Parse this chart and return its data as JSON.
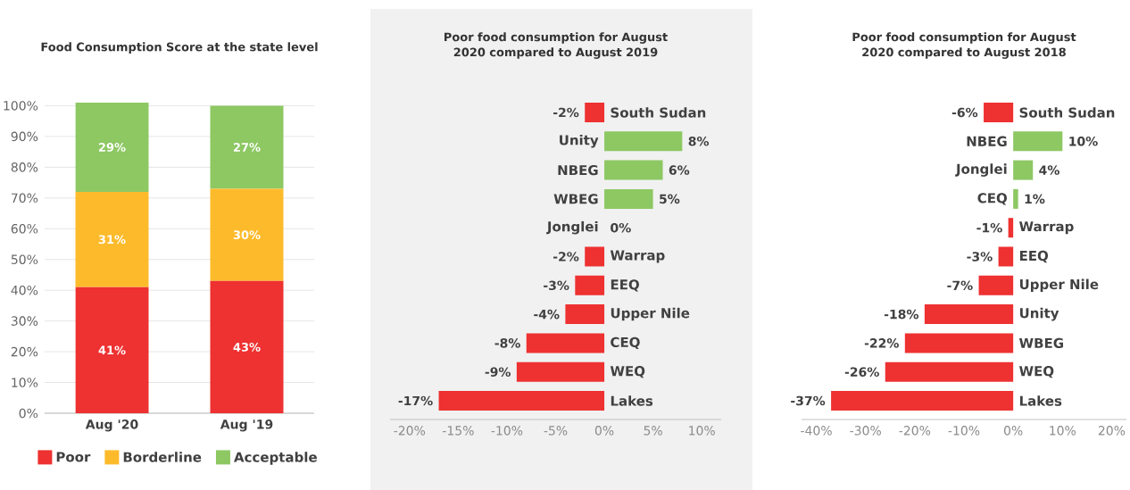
{
  "chart_data": [
    {
      "type": "bar",
      "title": "Food Consumption Score at the state level",
      "stacked": true,
      "categories": [
        "Aug '20",
        "Aug '19"
      ],
      "series": [
        {
          "name": "Poor",
          "color": "#ee3131",
          "values": [
            41,
            43
          ],
          "value_labels": [
            "41%",
            "43%"
          ]
        },
        {
          "name": "Borderline",
          "color": "#fdbb2b",
          "values": [
            31,
            30
          ],
          "value_labels": [
            "31%",
            "30%"
          ]
        },
        {
          "name": "Acceptable",
          "color": "#8dc863",
          "values": [
            29,
            27
          ],
          "value_labels": [
            "29%",
            "27%"
          ]
        }
      ],
      "ylim": [
        0,
        101
      ],
      "yticks": [
        {
          "value": 0,
          "label": "0%"
        },
        {
          "value": 10,
          "label": "10%"
        },
        {
          "value": 20,
          "label": "20%"
        },
        {
          "value": 30,
          "label": "30%"
        },
        {
          "value": 40,
          "label": "40%"
        },
        {
          "value": 50,
          "label": "50%"
        },
        {
          "value": 60,
          "label": "60%"
        },
        {
          "value": 70,
          "label": "70%"
        },
        {
          "value": 80,
          "label": "80%"
        },
        {
          "value": 90,
          "label": "90%"
        },
        {
          "value": 100,
          "label": "100%"
        }
      ],
      "grid": "y",
      "legend": "bottom"
    },
    {
      "type": "bar",
      "orientation": "horizontal",
      "title": "Poor food consumption for August 2020 compared to August 2019",
      "categories": [
        "South Sudan",
        "Unity",
        "NBEG",
        "WBEG",
        "Jonglei",
        "Warrap",
        "EEQ",
        "Upper Nile",
        "CEQ",
        "WEQ",
        "Lakes"
      ],
      "values": [
        -2,
        8,
        6,
        5,
        0,
        -2,
        -3,
        -4,
        -8,
        -9,
        -17
      ],
      "colors": [
        "#ee3131",
        "#8dc863",
        "#8dc863",
        "#8dc863",
        "#8dc863",
        "#ee3131",
        "#ee3131",
        "#ee3131",
        "#ee3131",
        "#ee3131",
        "#ee3131"
      ],
      "value_labels": [
        "-2%",
        "8%",
        "6%",
        "5%",
        "0%",
        "-2%",
        "-3%",
        "-4%",
        "-8%",
        "-9%",
        "-17%"
      ],
      "xlim": [
        -22,
        12
      ],
      "xticks": [
        {
          "value": -20,
          "label": "-20%"
        },
        {
          "value": -15,
          "label": "-15%"
        },
        {
          "value": -10,
          "label": "-10%"
        },
        {
          "value": -5,
          "label": "-5%"
        },
        {
          "value": 0,
          "label": "0%"
        },
        {
          "value": 5,
          "label": "5%"
        },
        {
          "value": 10,
          "label": "10%"
        }
      ]
    },
    {
      "type": "bar",
      "orientation": "horizontal",
      "title": "Poor food consumption for August 2020 compared to August 2018",
      "categories": [
        "South Sudan",
        "NBEG",
        "Jonglei",
        "CEQ",
        "Warrap",
        "EEQ",
        "Upper Nile",
        "Unity",
        "WBEG",
        "WEQ",
        "Lakes"
      ],
      "values": [
        -6,
        10,
        4,
        1,
        -1,
        -3,
        -7,
        -18,
        -22,
        -26,
        -37
      ],
      "colors": [
        "#ee3131",
        "#8dc863",
        "#8dc863",
        "#8dc863",
        "#ee3131",
        "#ee3131",
        "#ee3131",
        "#ee3131",
        "#ee3131",
        "#ee3131",
        "#ee3131"
      ],
      "value_labels": [
        "-6%",
        "10%",
        "4%",
        "1%",
        "-1%",
        "-3%",
        "-7%",
        "-18%",
        "-22%",
        "-26%",
        "-37%"
      ],
      "xlim": [
        -43,
        23
      ],
      "xticks": [
        {
          "value": -40,
          "label": "-40%"
        },
        {
          "value": -30,
          "label": "-30%"
        },
        {
          "value": -20,
          "label": "-20%"
        },
        {
          "value": -10,
          "label": "-10%"
        },
        {
          "value": 0,
          "label": "0%"
        },
        {
          "value": 10,
          "label": "10%"
        },
        {
          "value": 20,
          "label": "20%"
        }
      ]
    }
  ]
}
